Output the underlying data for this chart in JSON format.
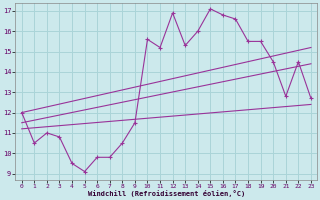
{
  "xlabel": "Windchill (Refroidissement éolien,°C)",
  "background_color": "#cce9ec",
  "grid_color": "#aad4d8",
  "line_color": "#993399",
  "xlim": [
    -0.5,
    23.5
  ],
  "ylim": [
    8.7,
    17.4
  ],
  "xticks": [
    0,
    1,
    2,
    3,
    4,
    5,
    6,
    7,
    8,
    9,
    10,
    11,
    12,
    13,
    14,
    15,
    16,
    17,
    18,
    19,
    20,
    21,
    22,
    23
  ],
  "yticks": [
    9,
    10,
    11,
    12,
    13,
    14,
    15,
    16,
    17
  ],
  "line1_x": [
    0,
    1,
    2,
    3,
    4,
    5,
    6,
    7,
    8,
    9,
    10,
    11,
    12,
    13,
    14,
    15,
    16,
    17,
    18,
    19,
    20,
    21,
    22,
    23
  ],
  "line1_y": [
    12.0,
    10.5,
    11.0,
    10.8,
    9.5,
    9.1,
    9.8,
    9.8,
    10.5,
    11.5,
    15.6,
    15.2,
    16.9,
    15.3,
    16.0,
    17.1,
    16.8,
    16.6,
    15.5,
    15.5,
    14.5,
    12.8,
    14.5,
    12.7
  ],
  "line2_x": [
    0,
    23
  ],
  "line2_y": [
    12.0,
    15.2
  ],
  "line3_x": [
    0,
    23
  ],
  "line3_y": [
    11.5,
    14.4
  ],
  "line4_x": [
    0,
    23
  ],
  "line4_y": [
    11.2,
    12.4
  ]
}
